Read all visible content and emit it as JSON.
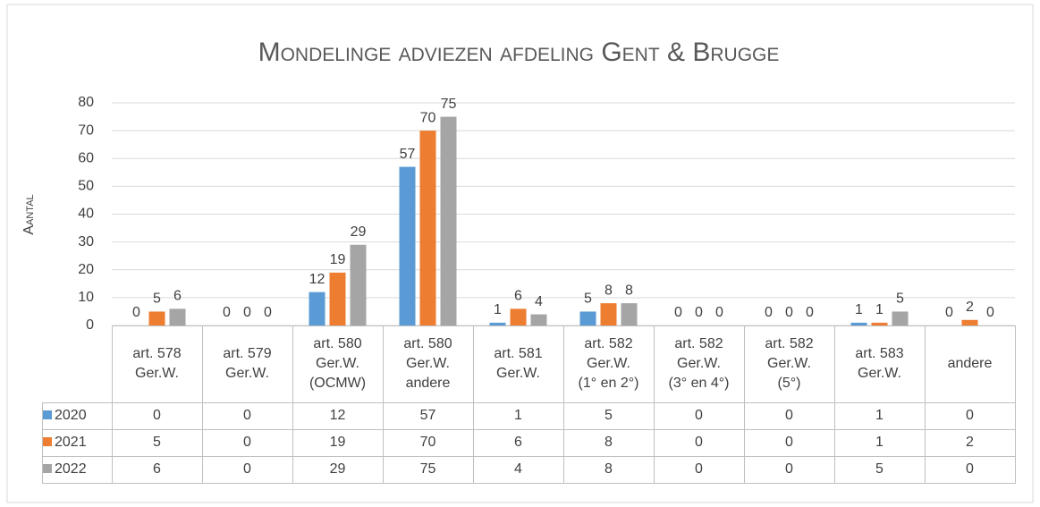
{
  "chart_data": {
    "type": "bar",
    "title": "Mondelinge adviezen afdeling Gent & Brugge",
    "y_label": "Aantal",
    "categories": [
      "art. 578\nGer.W.",
      "art. 579\nGer.W.",
      "art. 580\nGer.W.\n(OCMW)",
      "art. 580\nGer.W.\nandere",
      "art. 581\nGer.W.",
      "art. 582\nGer.W.\n(1° en 2°)",
      "art. 582\nGer.W.\n(3° en 4°)",
      "art. 582\nGer.W.\n(5°)",
      "art. 583\nGer.W.",
      "andere"
    ],
    "series": [
      {
        "name": "2020",
        "color": "#5b9bd5",
        "values": [
          0,
          0,
          12,
          57,
          1,
          5,
          0,
          0,
          1,
          0
        ]
      },
      {
        "name": "2021",
        "color": "#ed7d31",
        "values": [
          5,
          0,
          19,
          70,
          6,
          8,
          0,
          0,
          1,
          2
        ]
      },
      {
        "name": "2022",
        "color": "#a5a5a5",
        "values": [
          6,
          0,
          29,
          75,
          4,
          8,
          0,
          0,
          5,
          0
        ]
      }
    ],
    "ylim": [
      0,
      80
    ],
    "yticks": [
      0,
      10,
      20,
      30,
      40,
      50,
      60,
      70,
      80
    ],
    "grid": true,
    "data_table": true
  }
}
